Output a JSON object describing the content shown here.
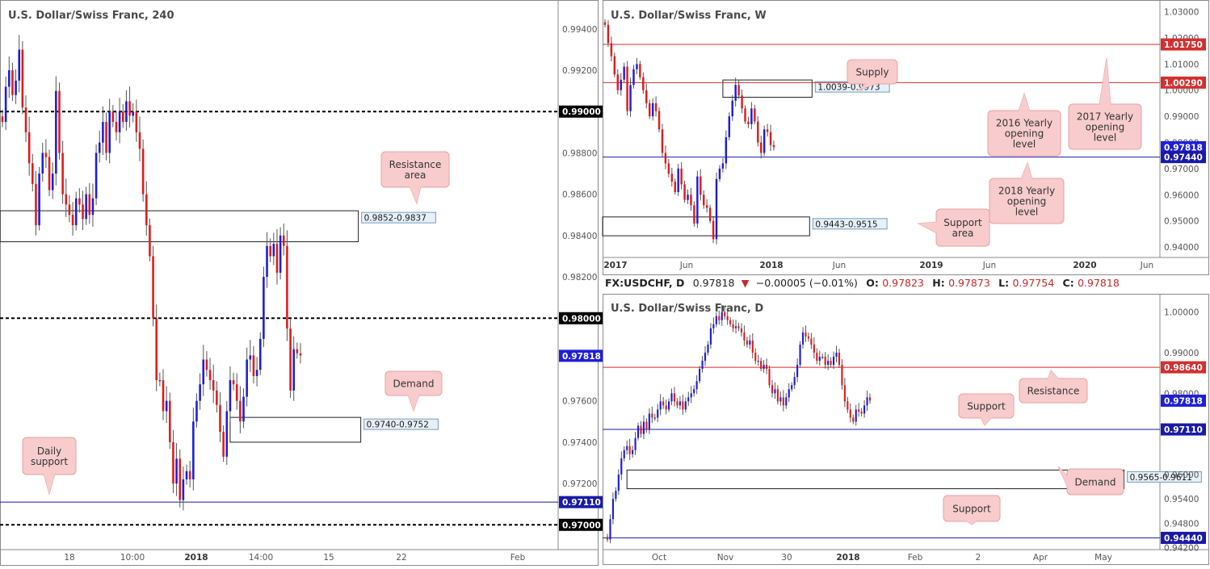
{
  "colors": {
    "bull": "#1d1dd8",
    "bear": "#e01b1b",
    "resistance": "#d32f2f",
    "support": "#1a1aa8",
    "round_number": "#000000",
    "callout_fill": "#f8cccc",
    "callout_border": "#e8a0a0",
    "zone_label_fill": "#e6f0f8",
    "zone_label_border": "#7a9bb8"
  },
  "symbol_bar": {
    "symbol": "FX:USDCHF, D",
    "close": "0.97818",
    "arrow": "▼",
    "change": "−0.00005 (−0.01%)",
    "o_label": "O:",
    "o_value": "0.97823",
    "h_label": "H:",
    "h_value": "0.97873",
    "l_label": "L:",
    "l_value": "0.97754",
    "c_label": "C:",
    "c_value": "0.97818"
  },
  "chart_data": [
    {
      "id": "h4",
      "type": "candlestick",
      "title": "U.S. Dollar/Swiss Franc, 240",
      "ylim": [
        0.9688,
        0.9954
      ],
      "y_ticks": [
        "0.99400",
        "0.99200",
        "0.98800",
        "0.98600",
        "0.98400",
        "0.98200",
        "0.97600",
        "0.97400",
        "0.97200"
      ],
      "x_ticks": [
        "18",
        "10:00",
        "2018",
        "14:00",
        "15",
        "22",
        "Feb"
      ],
      "price_tags": [
        {
          "label": "0.99000",
          "style": "round"
        },
        {
          "label": "0.98000",
          "style": "round"
        },
        {
          "label": "0.97818",
          "style": "current"
        },
        {
          "label": "0.97110",
          "style": "support"
        },
        {
          "label": "0.97000",
          "style": "round"
        }
      ],
      "levels": [
        {
          "value": 0.99,
          "kind": "round"
        },
        {
          "value": 0.98,
          "kind": "round"
        },
        {
          "value": 0.97,
          "kind": "round"
        },
        {
          "value": 0.9711,
          "kind": "support"
        }
      ],
      "zones": [
        {
          "label": "0.9852-0.9837",
          "low": 0.9837,
          "high": 0.9852,
          "from_bar": 0,
          "to_bar": 107
        },
        {
          "label": "0.9740-0.9752",
          "low": 0.974,
          "high": 0.9752,
          "from_bar": 68,
          "to_bar": 107
        }
      ],
      "callouts": [
        {
          "lines": [
            "Resistance",
            "area"
          ],
          "target": 0.9852
        },
        {
          "lines": [
            "Demand"
          ],
          "target": 0.9752
        },
        {
          "lines": [
            "Daily",
            "support"
          ],
          "target": 0.9711
        }
      ],
      "close_series": [
        0.9895,
        0.9912,
        0.992,
        0.9908,
        0.9915,
        0.993,
        0.9902,
        0.989,
        0.9875,
        0.9865,
        0.9845,
        0.987,
        0.988,
        0.9878,
        0.9862,
        0.987,
        0.991,
        0.988,
        0.986,
        0.9855,
        0.985,
        0.9845,
        0.9858,
        0.9855,
        0.9848,
        0.986,
        0.985,
        0.9858,
        0.988,
        0.9885,
        0.9895,
        0.988,
        0.99,
        0.9895,
        0.989,
        0.99,
        0.9895,
        0.9905,
        0.9898,
        0.99,
        0.989,
        0.9882,
        0.986,
        0.9845,
        0.983,
        0.98,
        0.977,
        0.977,
        0.9755,
        0.976,
        0.974,
        0.972,
        0.9732,
        0.9712,
        0.9722,
        0.9726,
        0.9722,
        0.975,
        0.976,
        0.9768,
        0.978,
        0.9775,
        0.977,
        0.9765,
        0.9758,
        0.9745,
        0.9733,
        0.9755,
        0.977,
        0.9768,
        0.976,
        0.975,
        0.9762,
        0.978,
        0.9782,
        0.9772,
        0.9775,
        0.979,
        0.982,
        0.9835,
        0.983,
        0.9836,
        0.9822,
        0.984,
        0.9835,
        0.9795,
        0.9765,
        0.9785,
        0.9783,
        0.9782
      ]
    },
    {
      "id": "weekly",
      "type": "candlestick",
      "title": "U.S. Dollar/Swiss Franc, W",
      "ylim": [
        0.936,
        1.0345
      ],
      "y_ticks": [
        "1.03000",
        "1.02000",
        "1.01000",
        "1.00000",
        "0.99000",
        "0.98000",
        "0.97000",
        "0.96000",
        "0.95000",
        "0.94000"
      ],
      "x_ticks": [
        "2017",
        "Jun",
        "2018",
        "Jun",
        "2019",
        "Jun",
        "2020",
        "Jun"
      ],
      "price_tags": [
        {
          "label": "1.01750",
          "style": "resistance"
        },
        {
          "label": "1.00290",
          "style": "resistance"
        },
        {
          "label": "0.97818",
          "style": "current"
        },
        {
          "label": "0.97440",
          "style": "support"
        }
      ],
      "levels": [
        {
          "value": 1.0175,
          "kind": "resistance"
        },
        {
          "value": 1.0029,
          "kind": "resistance"
        },
        {
          "value": 0.9744,
          "kind": "support"
        }
      ],
      "zones": [
        {
          "label": "1.0039-0.9973",
          "low": 0.9973,
          "high": 1.0039,
          "from_bar": 37,
          "to_bar": 65
        },
        {
          "label": "0.9443-0.9515",
          "low": 0.9443,
          "high": 0.9515,
          "from_bar": 0,
          "to_bar": 65
        }
      ],
      "callouts": [
        {
          "lines": [
            "Supply"
          ],
          "target": 1.0039
        },
        {
          "lines": [
            "2016 Yearly",
            "opening",
            "level"
          ],
          "target": 1.0029
        },
        {
          "lines": [
            "2017 Yearly",
            "opening",
            "level"
          ],
          "target": 1.0175
        },
        {
          "lines": [
            "2018 Yearly",
            "opening",
            "level"
          ],
          "target": 0.9744
        },
        {
          "lines": [
            "Support",
            "area"
          ],
          "target": 0.95
        }
      ],
      "close_series": [
        1.025,
        1.018,
        1.013,
        1.006,
        1.0,
        1.004,
        1.009,
        0.992,
        1.002,
        1.008,
        1.01,
        1.005,
        1.0,
        0.995,
        0.99,
        0.995,
        0.992,
        0.985,
        0.976,
        0.972,
        0.968,
        0.965,
        0.961,
        0.97,
        0.964,
        0.958,
        0.96,
        0.956,
        0.949,
        0.967,
        0.96,
        0.956,
        0.955,
        0.95,
        0.943,
        0.966,
        0.97,
        0.972,
        0.982,
        0.99,
        0.996,
        1.002,
        0.998,
        0.993,
        0.988,
        0.987,
        0.993,
        0.988,
        0.98,
        0.976,
        0.985,
        0.984,
        0.979,
        0.9782
      ]
    },
    {
      "id": "daily",
      "type": "candlestick",
      "title": "U.S. Dollar/Swiss Franc, D",
      "ylim": [
        0.9415,
        1.0045
      ],
      "y_ticks": [
        "1.00000",
        "0.99000",
        "0.98000",
        "0.96000",
        "0.95400",
        "0.94800",
        "0.94200"
      ],
      "x_ticks": [
        "Oct",
        "Nov",
        "30",
        "2018",
        "Feb",
        "2",
        "Apr",
        "May"
      ],
      "price_tags": [
        {
          "label": "0.98640",
          "style": "resistance"
        },
        {
          "label": "0.97818",
          "style": "current"
        },
        {
          "label": "0.97110",
          "style": "support"
        },
        {
          "label": "0.94440",
          "style": "support"
        }
      ],
      "levels": [
        {
          "value": 0.9864,
          "kind": "resistance"
        },
        {
          "value": 0.9711,
          "kind": "support"
        },
        {
          "value": 0.9444,
          "kind": "support"
        }
      ],
      "zones": [
        {
          "label": "0.9565-0.9611",
          "low": 0.9565,
          "high": 0.9611,
          "from_bar": 7,
          "to_bar": 185
        }
      ],
      "callouts": [
        {
          "lines": [
            "Resistance"
          ],
          "target": 0.9864
        },
        {
          "lines": [
            "Support"
          ],
          "target": 0.9711
        },
        {
          "lines": [
            "Demand"
          ],
          "target": 0.959
        },
        {
          "lines": [
            "Support"
          ],
          "target": 0.9444
        }
      ],
      "close_series": [
        0.944,
        0.949,
        0.954,
        0.956,
        0.96,
        0.964,
        0.966,
        0.967,
        0.965,
        0.966,
        0.969,
        0.972,
        0.97,
        0.973,
        0.971,
        0.975,
        0.974,
        0.974,
        0.976,
        0.978,
        0.977,
        0.976,
        0.978,
        0.98,
        0.978,
        0.977,
        0.978,
        0.976,
        0.978,
        0.979,
        0.98,
        0.981,
        0.983,
        0.986,
        0.988,
        0.99,
        0.992,
        0.996,
        0.997,
        0.999,
        0.998,
        1.0,
        0.999,
        0.998,
        0.997,
        0.996,
        0.9965,
        0.996,
        0.995,
        0.993,
        0.992,
        0.993,
        0.99,
        0.988,
        0.988,
        0.986,
        0.987,
        0.986,
        0.982,
        0.98,
        0.981,
        0.978,
        0.979,
        0.977,
        0.979,
        0.981,
        0.982,
        0.984,
        0.987,
        0.992,
        0.995,
        0.994,
        0.9935,
        0.992,
        0.99,
        0.988,
        0.989,
        0.989,
        0.987,
        0.988,
        0.987,
        0.989,
        0.99,
        0.987,
        0.982,
        0.978,
        0.976,
        0.974,
        0.973,
        0.976,
        0.9755,
        0.975,
        0.977,
        0.979,
        0.9782
      ]
    }
  ]
}
